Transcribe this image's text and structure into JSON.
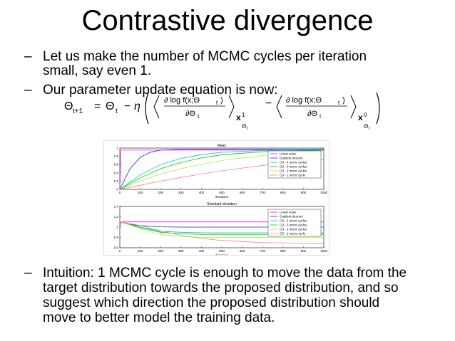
{
  "slide": {
    "title": "Contrastive divergence",
    "bullets": [
      {
        "dash": "–",
        "lines": [
          "Let us make the number of MCMC cycles per iteration",
          "small, say even 1."
        ]
      },
      {
        "dash": "–",
        "lines": [
          "Our parameter update equation is now:"
        ]
      },
      {
        "dash": "–",
        "lines": [
          "Intuition: 1 MCMC cycle is enough to move the data from the",
          "target distribution towards the proposed distribution, and so",
          "suggest which direction the proposed distribution should",
          "move to better model the training data."
        ]
      }
    ]
  },
  "equation": {
    "lhs": "Θ",
    "lhs_sub": "t+1",
    "rhs_theta": "Θ",
    "rhs_sub": "t",
    "minus": "−",
    "eta": "η",
    "eq_sign": "=",
    "numerator": "∂ log f(x;Θ",
    "numerator_sub": "t",
    "numerator_close": ")",
    "denominator": "∂Θ",
    "denominator_sub": "t",
    "bold_x": "x",
    "sup1": "1",
    "sup0": "0",
    "sub_theta": "Θ",
    "sub_theta_t": "t"
  },
  "chart_data": [
    {
      "type": "line",
      "title": "Mean",
      "xlabel": "iterations",
      "xlim": [
        0,
        1000
      ],
      "ylim": [
        0,
        1
      ],
      "xticks": [
        0,
        100,
        200,
        300,
        400,
        500,
        600,
        700,
        800,
        900,
        1000
      ],
      "yticks": [
        0,
        0.2,
        0.4,
        0.6,
        0.8,
        1
      ],
      "legend_position": "right",
      "series": [
        {
          "name": "Linear solve",
          "color": "#ff00ff",
          "x": [
            0,
            5,
            1000
          ],
          "y": [
            0,
            0.95,
            0.95
          ]
        },
        {
          "name": "Gradient descent",
          "color": "#2020c0",
          "x": [
            0,
            50,
            100,
            150,
            200,
            300,
            400,
            1000
          ],
          "y": [
            0,
            0.5,
            0.78,
            0.9,
            0.95,
            0.97,
            0.97,
            0.97
          ]
        },
        {
          "name": "CD - 4 mcmc cycles",
          "color": "#00c8c8",
          "x": [
            0,
            100,
            200,
            300,
            400,
            500,
            700,
            1000
          ],
          "y": [
            0,
            0.35,
            0.6,
            0.75,
            0.84,
            0.9,
            0.94,
            0.96
          ]
        },
        {
          "name": "CD - 3 mcmc cycles",
          "color": "#00c800",
          "x": [
            0,
            100,
            200,
            300,
            400,
            500,
            700,
            1000
          ],
          "y": [
            0,
            0.28,
            0.5,
            0.65,
            0.76,
            0.84,
            0.91,
            0.95
          ]
        },
        {
          "name": "CD - 2 mcmc cycles",
          "color": "#aaee44",
          "x": [
            0,
            100,
            200,
            300,
            400,
            500,
            700,
            1000
          ],
          "y": [
            0,
            0.2,
            0.37,
            0.5,
            0.61,
            0.7,
            0.82,
            0.91
          ]
        },
        {
          "name": "CD - 1 mcmc cycle",
          "color": "#ff8080",
          "x": [
            0,
            100,
            200,
            300,
            400,
            500,
            700,
            1000
          ],
          "y": [
            0,
            0.1,
            0.2,
            0.29,
            0.37,
            0.45,
            0.58,
            0.72
          ]
        }
      ]
    },
    {
      "type": "line",
      "title": "Standard deviation",
      "xlabel": "iterations",
      "xlim": [
        0,
        1000
      ],
      "ylim": [
        0.6,
        1.4
      ],
      "xticks": [
        0,
        100,
        200,
        300,
        400,
        500,
        600,
        700,
        800,
        900,
        1000
      ],
      "yticks": [
        0.6,
        0.8,
        1,
        1.2,
        1.4
      ],
      "legend_position": "right",
      "series": [
        {
          "name": "Linear solve",
          "color": "#ff00ff",
          "x": [
            0,
            5,
            1000
          ],
          "y": [
            1,
            1.1,
            1.1
          ]
        },
        {
          "name": "Gradient descent",
          "color": "#2020c0",
          "x": [
            0,
            20,
            50,
            100,
            150,
            200,
            300,
            1000
          ],
          "y": [
            1.1,
            1.08,
            1.05,
            1.03,
            1.015,
            1.005,
            1.0,
            1.0
          ]
        },
        {
          "name": "CD - 4 mcmc cycles",
          "color": "#00c8c8",
          "x": [
            0,
            50,
            100,
            200,
            300,
            400,
            1000
          ],
          "y": [
            1.1,
            1.05,
            1.0,
            0.92,
            0.9,
            0.89,
            0.89
          ]
        },
        {
          "name": "CD - 3 mcmc cycles",
          "color": "#00c800",
          "x": [
            0,
            50,
            100,
            200,
            300,
            400,
            1000
          ],
          "y": [
            1.1,
            1.05,
            0.99,
            0.9,
            0.87,
            0.86,
            0.86
          ]
        },
        {
          "name": "CD - 2 mcmc cycles",
          "color": "#aaee44",
          "x": [
            0,
            50,
            100,
            200,
            300,
            400,
            1000
          ],
          "y": [
            1.1,
            1.04,
            0.97,
            0.86,
            0.82,
            0.8,
            0.8
          ]
        },
        {
          "name": "CD - 1 mcmc cycle",
          "color": "#ff8080",
          "x": [
            0,
            50,
            100,
            200,
            300,
            400,
            500,
            700,
            1000
          ],
          "y": [
            1.1,
            1.07,
            1.03,
            0.93,
            0.84,
            0.78,
            0.74,
            0.7,
            0.68
          ]
        }
      ]
    }
  ]
}
